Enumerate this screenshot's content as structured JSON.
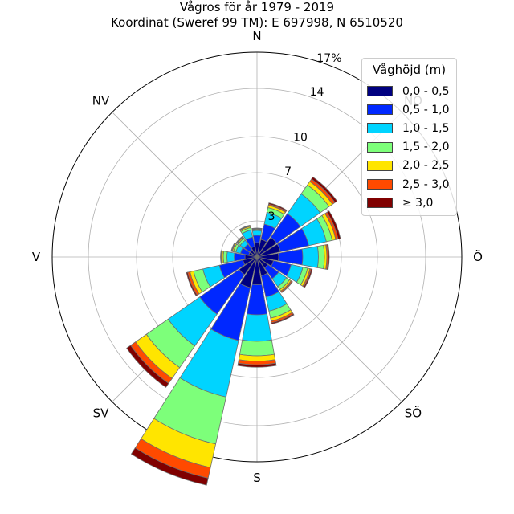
{
  "chart": {
    "title_line1": "Vågros för år 1979 - 2019",
    "title_line2": "Koordinat (Sweref 99 TM): E 697998, N 6510520"
  },
  "legend": {
    "title": "Våghöjd (m)",
    "items": [
      {
        "label": "0,0 - 0,5",
        "color": "#000080"
      },
      {
        "label": "0,5 - 1,0",
        "color": "#0028ff"
      },
      {
        "label": "1,0 - 1,5",
        "color": "#00d4ff"
      },
      {
        "label": "1,5 - 2,0",
        "color": "#7dff7a"
      },
      {
        "label": "2,0 - 2,5",
        "color": "#ffe500"
      },
      {
        "label": "2,5 - 3,0",
        "color": "#ff4a00"
      },
      {
        "label": "≥ 3,0",
        "color": "#800000"
      }
    ]
  },
  "chart_data": {
    "type": "windrose",
    "title": "Vågros för år 1979 - 2019",
    "subtitle": "Koordinat (Sweref 99 TM): E 697998, N 6510520",
    "legend_title": "Våghöjd (m)",
    "legend_position": "top-right",
    "r_max": 17,
    "r_unit": "%",
    "r_ticks": [
      3,
      7,
      10,
      14,
      17
    ],
    "r_tick_labels": [
      "3",
      "7",
      "10",
      "14",
      "17%"
    ],
    "direction_labels": [
      "N",
      "NO",
      "Ö",
      "SÖ",
      "S",
      "SV",
      "V",
      "NV"
    ],
    "grid": true,
    "sector_width_deg": 22.5,
    "bins": [
      "0,0 - 0,5",
      "0,5 - 1,0",
      "1,0 - 1,5",
      "1,5 - 2,0",
      "2,0 - 2,5",
      "2,5 - 3,0",
      "≥ 3,0"
    ],
    "sectors": [
      {
        "direction_deg": 0,
        "values": [
          1.2,
          0.6,
          0.4,
          0.1,
          0.05,
          0.03,
          0.02
        ]
      },
      {
        "direction_deg": 22.5,
        "values": [
          1.5,
          1.3,
          1.0,
          0.4,
          0.2,
          0.1,
          0.1
        ]
      },
      {
        "direction_deg": 45,
        "values": [
          2.0,
          2.4,
          2.0,
          0.9,
          0.35,
          0.25,
          0.2
        ]
      },
      {
        "direction_deg": 67.5,
        "values": [
          2.0,
          2.4,
          1.5,
          0.5,
          0.3,
          0.2,
          0.2
        ]
      },
      {
        "direction_deg": 90,
        "values": [
          1.8,
          2.0,
          1.3,
          0.5,
          0.2,
          0.1,
          0.1
        ]
      },
      {
        "direction_deg": 112.5,
        "values": [
          1.4,
          1.5,
          1.0,
          0.4,
          0.2,
          0.1,
          0.1
        ]
      },
      {
        "direction_deg": 135,
        "values": [
          1.1,
          1.1,
          0.8,
          0.3,
          0.15,
          0.1,
          0.05
        ]
      },
      {
        "direction_deg": 157.5,
        "values": [
          1.6,
          1.8,
          1.2,
          0.6,
          0.25,
          0.15,
          0.1
        ]
      },
      {
        "direction_deg": 180,
        "values": [
          2.3,
          2.5,
          2.2,
          1.2,
          0.45,
          0.3,
          0.2
        ]
      },
      {
        "direction_deg": 202.5,
        "values": [
          2.6,
          4.5,
          4.8,
          4.0,
          2.0,
          0.9,
          0.6
        ]
      },
      {
        "direction_deg": 225,
        "values": [
          1.8,
          4.0,
          3.2,
          2.2,
          1.1,
          0.5,
          0.4
        ]
      },
      {
        "direction_deg": 247.5,
        "values": [
          1.2,
          2.0,
          1.4,
          0.8,
          0.3,
          0.2,
          0.1
        ]
      },
      {
        "direction_deg": 270,
        "values": [
          1.0,
          0.9,
          0.6,
          0.3,
          0.1,
          0.08,
          0.05
        ]
      },
      {
        "direction_deg": 292.5,
        "values": [
          0.7,
          0.7,
          0.4,
          0.2,
          0.1,
          0.05,
          0.05
        ]
      },
      {
        "direction_deg": 315,
        "values": [
          0.7,
          0.6,
          0.4,
          0.2,
          0.1,
          0.05,
          0.05
        ]
      },
      {
        "direction_deg": 337.5,
        "values": [
          0.9,
          0.8,
          0.6,
          0.2,
          0.1,
          0.05,
          0.05
        ]
      }
    ]
  }
}
